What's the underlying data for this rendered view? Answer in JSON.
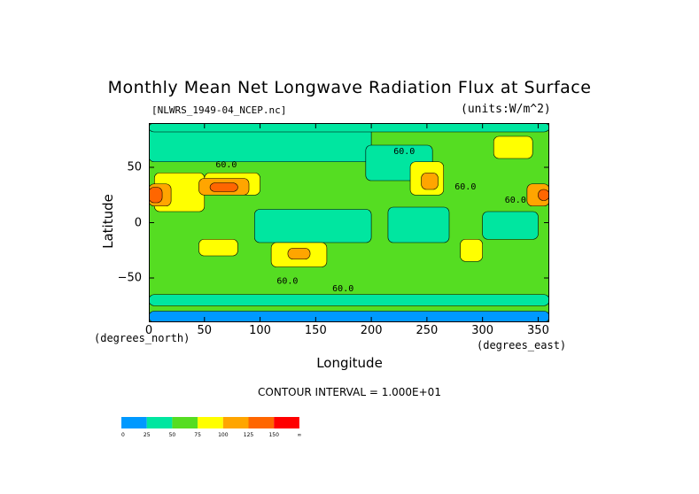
{
  "chart_data": {
    "type": "heatmap",
    "title": "Monthly Mean Net Longwave Radiation Flux at Surface",
    "dataset_label": "[NLWRS_1949-04_NCEP.nc]",
    "units_label": "(units:W/m^2)",
    "xlabel": "Longitude",
    "ylabel": "Latitude",
    "x_unit": "(degrees_east)",
    "y_unit": "(degrees_north)",
    "xlim": [
      0,
      360
    ],
    "ylim": [
      -90,
      90
    ],
    "x_ticks": [
      0,
      50,
      100,
      150,
      200,
      250,
      300,
      350
    ],
    "y_ticks": [
      50,
      0,
      -50
    ],
    "x_tick_labels": [
      "0",
      "50",
      "100",
      "150",
      "200",
      "250",
      "300",
      "350"
    ],
    "y_tick_labels": [
      "50",
      "0",
      "−50"
    ],
    "contour_interval_text": "CONTOUR INTERVAL = 1.000E+01",
    "contour_labels": [
      "60.0",
      "60.0",
      "60.0",
      "60.0",
      "60.0",
      "60.0"
    ],
    "colorbar": {
      "levels": [
        "0",
        "25",
        "50",
        "75",
        "100",
        "125",
        "150",
        "∞"
      ],
      "colors": [
        "#0099ff",
        "#00e6a0",
        "#55dd22",
        "#ffff00",
        "#ffa500",
        "#ff6600",
        "#ff0000"
      ]
    },
    "background_fill_color": "#55dd22",
    "regions": [
      {
        "lon": [
          0,
          360
        ],
        "lat": [
          -90,
          90
        ],
        "level": 2
      },
      {
        "lon": [
          0,
          200
        ],
        "lat": [
          55,
          88
        ],
        "level": 1
      },
      {
        "lon": [
          95,
          200
        ],
        "lat": [
          -18,
          12
        ],
        "level": 1
      },
      {
        "lon": [
          215,
          270
        ],
        "lat": [
          -18,
          14
        ],
        "level": 1
      },
      {
        "lon": [
          195,
          255
        ],
        "lat": [
          38,
          70
        ],
        "level": 1
      },
      {
        "lon": [
          300,
          350
        ],
        "lat": [
          -15,
          10
        ],
        "level": 1
      },
      {
        "lon": [
          0,
          360
        ],
        "lat": [
          -75,
          -65
        ],
        "level": 1
      },
      {
        "lon": [
          0,
          360
        ],
        "lat": [
          -90,
          -80
        ],
        "level": 0
      },
      {
        "lon": [
          0,
          360
        ],
        "lat": [
          82,
          90
        ],
        "level": 1
      },
      {
        "lon": [
          5,
          50
        ],
        "lat": [
          10,
          45
        ],
        "level": 3
      },
      {
        "lon": [
          50,
          100
        ],
        "lat": [
          25,
          45
        ],
        "level": 3
      },
      {
        "lon": [
          45,
          80
        ],
        "lat": [
          -30,
          -15
        ],
        "level": 3
      },
      {
        "lon": [
          110,
          160
        ],
        "lat": [
          -40,
          -18
        ],
        "level": 3
      },
      {
        "lon": [
          235,
          265
        ],
        "lat": [
          25,
          55
        ],
        "level": 3
      },
      {
        "lon": [
          280,
          300
        ],
        "lat": [
          -35,
          -15
        ],
        "level": 3
      },
      {
        "lon": [
          310,
          345
        ],
        "lat": [
          58,
          78
        ],
        "level": 3
      },
      {
        "lon": [
          0,
          20
        ],
        "lat": [
          15,
          35
        ],
        "level": 4
      },
      {
        "lon": [
          45,
          90
        ],
        "lat": [
          25,
          40
        ],
        "level": 4
      },
      {
        "lon": [
          125,
          145
        ],
        "lat": [
          -33,
          -23
        ],
        "level": 4
      },
      {
        "lon": [
          245,
          260
        ],
        "lat": [
          30,
          45
        ],
        "level": 4
      },
      {
        "lon": [
          340,
          360
        ],
        "lat": [
          15,
          35
        ],
        "level": 4
      },
      {
        "lon": [
          0,
          12
        ],
        "lat": [
          18,
          32
        ],
        "level": 5
      },
      {
        "lon": [
          55,
          80
        ],
        "lat": [
          28,
          36
        ],
        "level": 5
      },
      {
        "lon": [
          350,
          360
        ],
        "lat": [
          20,
          30
        ],
        "level": 5
      }
    ]
  }
}
